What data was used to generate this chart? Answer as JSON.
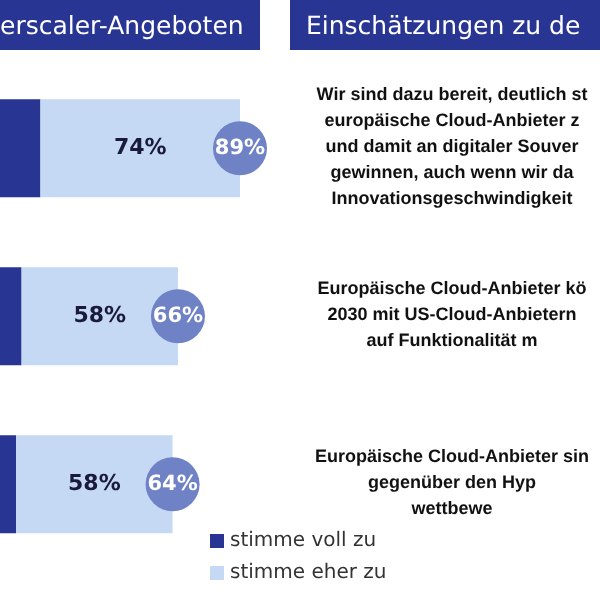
{
  "chart_data": {
    "type": "bar",
    "orientation": "horizontal",
    "stacked": true,
    "title": "erscaler-Angeboten",
    "subtitle": "Einschätzungen zu de",
    "categories": [
      "Wir sind dazu bereit, deutlich st\neuropäische Cloud-Anbieter z\nund damit an digitaler Souver\ngewinnen, auch wenn wir da\nInnovationsgeschwindigkeit",
      "Europäische Cloud-Anbieter kö\n2030 mit US-Cloud-Anbietern\nauf Funktionalität m",
      "Europäische Cloud-Anbieter sin\ngegenüber den Hyp\nwettbewe"
    ],
    "series": [
      {
        "name": "stimme voll zu",
        "color": "#283593",
        "values": [
          15,
          8,
          6
        ],
        "value_labels": [
          null,
          null,
          null
        ]
      },
      {
        "name": "stimme eher zu",
        "color": "#c5d9f5",
        "values": [
          74,
          58,
          58
        ],
        "value_labels": [
          "74%",
          "58%",
          "58%"
        ]
      }
    ],
    "totals": [
      "89%",
      "66%",
      "64%"
    ],
    "tick_labels": "y",
    "grid": false,
    "legend": "bottom"
  }
}
